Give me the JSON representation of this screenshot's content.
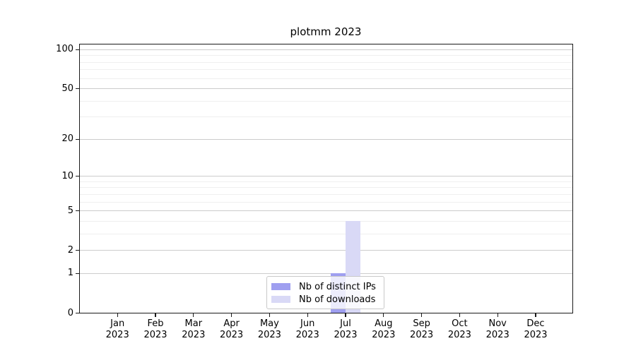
{
  "chart_data": {
    "type": "bar",
    "title": "plotmm 2023",
    "categories": [
      "Jan",
      "Feb",
      "Mar",
      "Apr",
      "May",
      "Jun",
      "Jul",
      "Aug",
      "Sep",
      "Oct",
      "Nov",
      "Dec"
    ],
    "x_year_label": "2023",
    "series": [
      {
        "name": "Nb of distinct IPs",
        "color": "#9f9ff0",
        "values": [
          0,
          0,
          0,
          0,
          0,
          0,
          1,
          0,
          0,
          0,
          0,
          0
        ]
      },
      {
        "name": "Nb of downloads",
        "color": "#d9d9f6",
        "values": [
          0,
          0,
          0,
          0,
          0,
          0,
          4,
          0,
          0,
          0,
          0,
          0
        ]
      }
    ],
    "y_scale": "log10(1+x)",
    "y_ticks": [
      0,
      1,
      2,
      5,
      10,
      20,
      50,
      100
    ],
    "y_minor_gridlines": [
      3,
      4,
      6,
      7,
      8,
      9,
      30,
      40,
      60,
      70,
      80,
      90
    ],
    "ylim": [
      0,
      111
    ],
    "grid": "horizontal",
    "legend_position": "lower center",
    "colors": {
      "axis": "#1a1a1a",
      "major_grid": "#cccccc",
      "minor_grid": "#efefef",
      "background": "#ffffff"
    }
  }
}
